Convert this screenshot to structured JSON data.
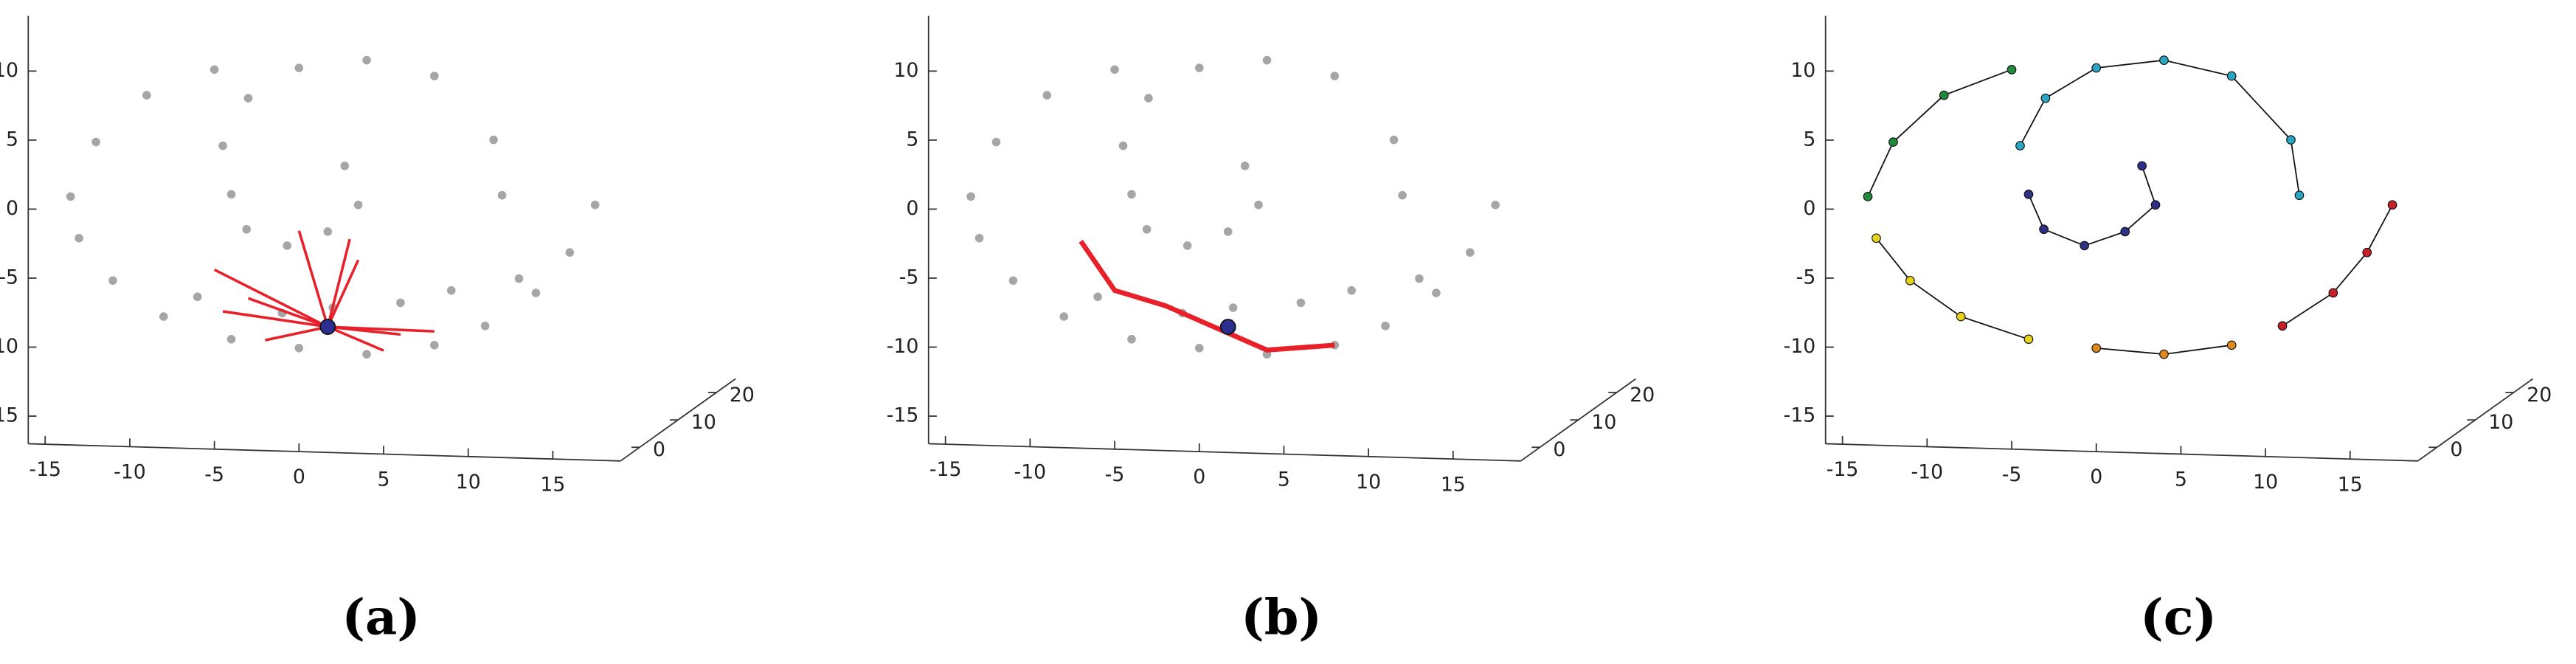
{
  "chart_data": [
    {
      "type": "scatter3d",
      "caption": "(a)",
      "mode": "star",
      "xlim": [
        -16,
        19
      ],
      "ylim": [
        -17,
        14
      ],
      "zlim": [
        -5,
        25
      ],
      "xticks": [
        -15,
        -10,
        -5,
        0,
        5,
        10,
        15
      ],
      "yticks": [
        -15,
        -10,
        -5,
        0,
        5,
        10
      ],
      "zticks": [
        0,
        10,
        20
      ],
      "color": "#a6a6a6",
      "x": [
        2.7,
        3.5,
        1.7,
        -0.7,
        -3.1,
        -4,
        -4.5,
        -3,
        0,
        4,
        8,
        11.5,
        12,
        -5,
        -9,
        -12,
        -13.5,
        -13,
        -11,
        -8,
        -4,
        0,
        4,
        8,
        11,
        14,
        16,
        17.5,
        6,
        9,
        13,
        -6,
        -1,
        2
      ],
      "y": [
        3.8,
        1,
        -1,
        -2.1,
        -1,
        1.5,
        5,
        8.5,
        10.8,
        11.5,
        10.5,
        6,
        2,
        10.5,
        8.5,
        5,
        1,
        -2,
        -5,
        -7.5,
        -9,
        -9.5,
        -9.8,
        -9,
        -7.5,
        -5,
        -2,
        1.5,
        -6,
        -5,
        -4,
        -6,
        -7,
        -6.5
      ],
      "highlight": {
        "x": 1.7,
        "y": -7.9,
        "color": "#2b2f8f"
      },
      "neighbors": {
        "color": "#e8202a",
        "x": [
          -5,
          -3,
          0,
          3,
          6,
          5,
          -2,
          3.5,
          -4.5,
          8
        ],
        "y": [
          -4,
          -6,
          -1,
          -1.5,
          -8.3,
          -9.5,
          -9,
          -3,
          -7,
          -8
        ]
      }
    },
    {
      "type": "scatter3d",
      "caption": "(b)",
      "mode": "path",
      "xlim": [
        -16,
        19
      ],
      "ylim": [
        -17,
        14
      ],
      "zlim": [
        -5,
        25
      ],
      "xticks": [
        -15,
        -10,
        -5,
        0,
        5,
        10,
        15
      ],
      "yticks": [
        -15,
        -10,
        -5,
        0,
        5,
        10
      ],
      "zticks": [
        0,
        10,
        20
      ],
      "color": "#a6a6a6",
      "x": [
        2.7,
        3.5,
        1.7,
        -0.7,
        -3.1,
        -4,
        -4.5,
        -3,
        0,
        4,
        8,
        11.5,
        12,
        -5,
        -9,
        -12,
        -13.5,
        -13,
        -11,
        -8,
        -4,
        0,
        4,
        8,
        11,
        14,
        16,
        17.5,
        6,
        9,
        13,
        -6,
        -1,
        2
      ],
      "y": [
        3.8,
        1,
        -1,
        -2.1,
        -1,
        1.5,
        5,
        8.5,
        10.8,
        11.5,
        10.5,
        6,
        2,
        10.5,
        8.5,
        5,
        1,
        -2,
        -5,
        -7.5,
        -9,
        -9.5,
        -9.8,
        -9,
        -7.5,
        -5,
        -2,
        1.5,
        -6,
        -5,
        -4,
        -6,
        -7,
        -6.5
      ],
      "highlight": {
        "x": 1.7,
        "y": -7.9,
        "color": "#2b2f8f"
      },
      "neighbors": {
        "color": "#e8202a",
        "x": [
          -7,
          -5,
          -2,
          1,
          4,
          8
        ],
        "y": [
          -2,
          -5.5,
          -6.5,
          -8,
          -9.5,
          -9
        ]
      }
    },
    {
      "type": "graph3d",
      "caption": "(c)",
      "xlim": [
        -16,
        19
      ],
      "ylim": [
        -17,
        14
      ],
      "zlim": [
        -5,
        25
      ],
      "xticks": [
        -15,
        -10,
        -5,
        0,
        5,
        10,
        15
      ],
      "yticks": [
        -15,
        -10,
        -5,
        0,
        5,
        10
      ],
      "zticks": [
        0,
        10,
        20
      ],
      "series": [
        {
          "color": "#2e2f86",
          "x": [
            2.7,
            3.5,
            1.7,
            -0.7,
            -3.1,
            -4
          ],
          "y": [
            3.8,
            1,
            -1,
            -2.1,
            -1,
            1.5
          ]
        },
        {
          "color": "#2aa6c4",
          "x": [
            -4.5,
            -3,
            0,
            4,
            8,
            11.5,
            12
          ],
          "y": [
            5,
            8.5,
            10.8,
            11.5,
            10.5,
            6,
            2
          ]
        },
        {
          "color": "#1f8a3a",
          "x": [
            -5,
            -9,
            -12,
            -13.5
          ],
          "y": [
            10.5,
            8.5,
            5,
            1
          ]
        },
        {
          "color": "#e6d21a",
          "x": [
            -13,
            -11,
            -8,
            -4
          ],
          "y": [
            -2,
            -5,
            -7.5,
            -9
          ]
        },
        {
          "color": "#e08a1e",
          "x": [
            0,
            4,
            8
          ],
          "y": [
            -9.5,
            -9.8,
            -9
          ]
        },
        {
          "color": "#c8202a",
          "x": [
            11,
            14,
            16,
            17.5
          ],
          "y": [
            -7.5,
            -5,
            -2,
            1.5
          ]
        }
      ]
    }
  ]
}
